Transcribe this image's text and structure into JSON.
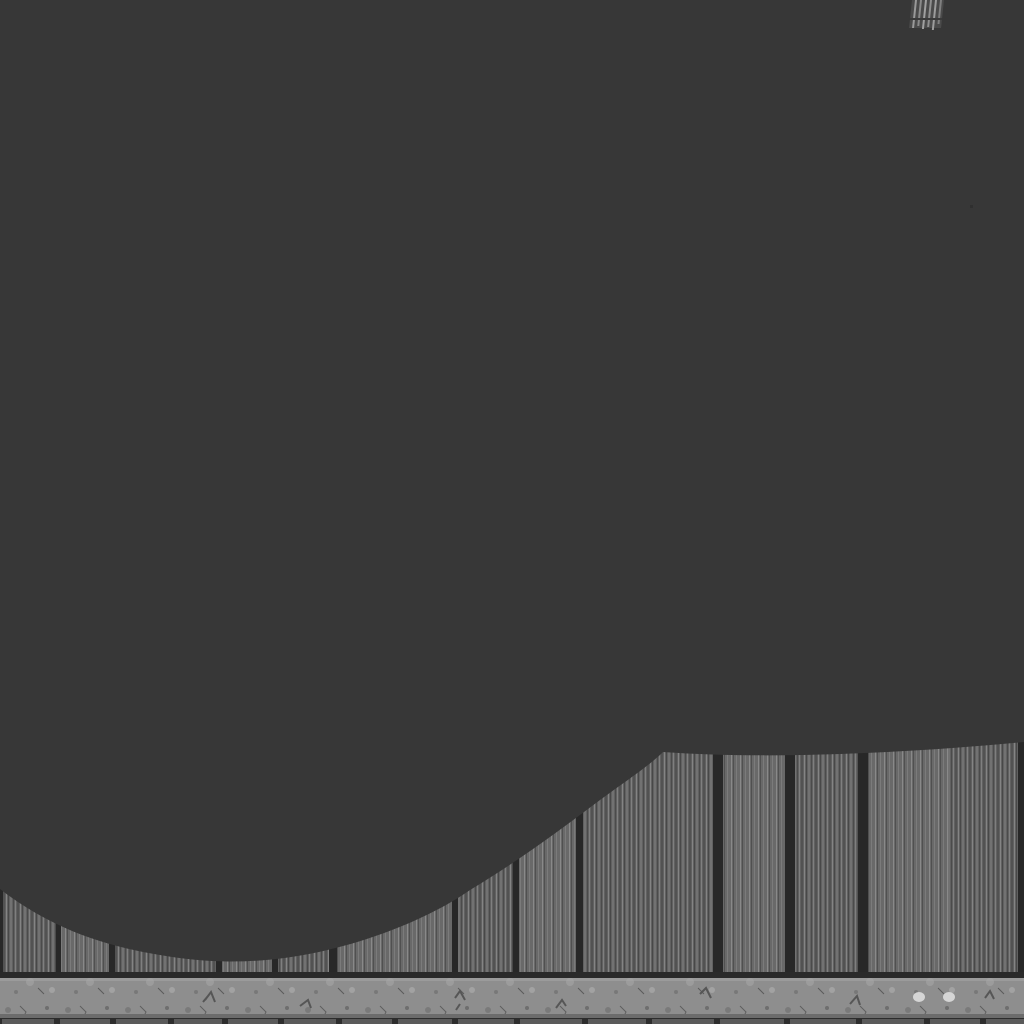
{
  "scene": {
    "kind": "texture-atlas",
    "colors": {
      "background": "#373737",
      "plank_light": "#7d7d7d",
      "plank_mid": "#626262",
      "plank_dark": "#4d4d4d",
      "plank_gap": "#2c2c2c",
      "stone": "#8e8e8e",
      "stone_dark": "#6c6c6c",
      "stone_light": "#a8a8a8",
      "moss": "#565656",
      "hole": "#d5d5d5"
    },
    "plank_strip": {
      "plank_count": 16,
      "style": "vertical-striated"
    },
    "stone_strip": {
      "block_count": 17,
      "style": "cobblestone"
    },
    "corner_fragment": {
      "style": "striped-chip"
    },
    "holes": {
      "count": 2
    }
  }
}
